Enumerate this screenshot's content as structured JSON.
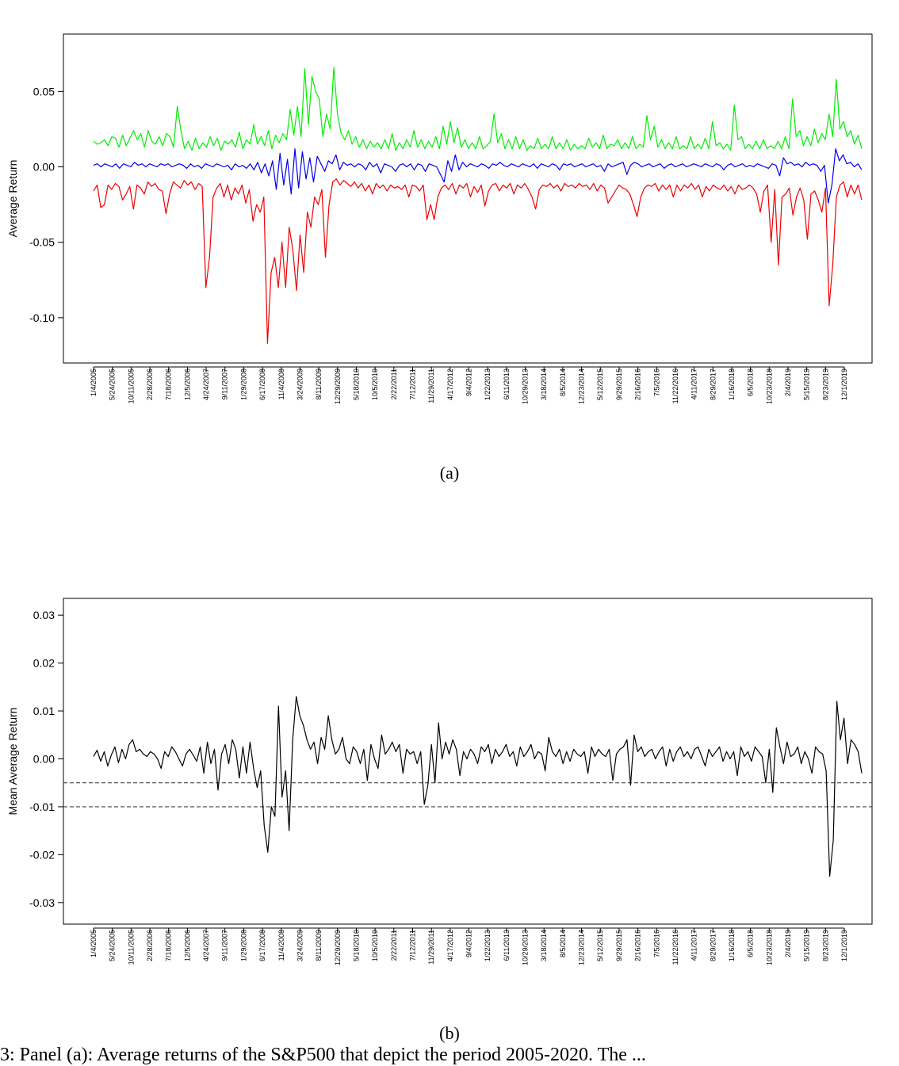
{
  "bottom_text": "3: Panel (a): Average returns of the S&P500 that depict the period 2005-2020. The ...",
  "chart_data": [
    {
      "type": "line",
      "panel": "a",
      "caption": "(a)",
      "title": "",
      "xlabel": "",
      "ylabel": "Average Return",
      "ylim": [
        -0.13,
        0.088
      ],
      "yticks": [
        -0.1,
        -0.05,
        0.0,
        0.05
      ],
      "ytick_labels": [
        "-0.10",
        "-0.05",
        "0.00",
        "0.05"
      ],
      "x_tick_labels": [
        "1/4/2005",
        "5/24/2005",
        "10/11/2005",
        "2/28/2006",
        "7/18/2006",
        "12/5/2006",
        "4/24/2007",
        "9/11/2007",
        "1/29/2008",
        "6/17/2008",
        "11/4/2008",
        "3/24/2009",
        "8/11/2009",
        "12/29/2009",
        "5/18/2010",
        "10/5/2010",
        "2/22/2011",
        "7/12/2011",
        "11/29/2011",
        "4/17/2012",
        "9/4/2012",
        "1/22/2013",
        "6/11/2013",
        "10/29/2013",
        "3/18/2014",
        "8/5/2014",
        "12/23/2014",
        "5/12/2015",
        "9/29/2015",
        "2/16/2016",
        "7/5/2016",
        "11/22/2016",
        "4/11/2017",
        "8/29/2017",
        "1/16/2018",
        "6/5/2018",
        "10/23/2018",
        "2/4/2019",
        "5/15/2019",
        "8/23/2019",
        "12/1/2019"
      ],
      "x_range_points": 41,
      "grid": false,
      "series": [
        {
          "color": "#00ee00",
          "values": [
            0.017,
            0.015,
            0.016,
            0.018,
            0.014,
            0.02,
            0.019,
            0.013,
            0.021,
            0.014,
            0.019,
            0.024,
            0.018,
            0.022,
            0.013,
            0.024,
            0.017,
            0.015,
            0.02,
            0.014,
            0.022,
            0.02,
            0.013,
            0.04,
            0.024,
            0.012,
            0.017,
            0.011,
            0.019,
            0.012,
            0.016,
            0.013,
            0.02,
            0.014,
            0.019,
            0.011,
            0.017,
            0.015,
            0.018,
            0.013,
            0.023,
            0.012,
            0.018,
            0.015,
            0.028,
            0.015,
            0.02,
            0.014,
            0.024,
            0.012,
            0.021,
            0.016,
            0.022,
            0.018,
            0.038,
            0.021,
            0.04,
            0.02,
            0.065,
            0.028,
            0.06,
            0.05,
            0.045,
            0.02,
            0.035,
            0.025,
            0.066,
            0.035,
            0.022,
            0.018,
            0.024,
            0.015,
            0.02,
            0.013,
            0.018,
            0.012,
            0.017,
            0.013,
            0.016,
            0.012,
            0.018,
            0.012,
            0.022,
            0.011,
            0.016,
            0.012,
            0.018,
            0.013,
            0.024,
            0.013,
            0.018,
            0.012,
            0.017,
            0.013,
            0.02,
            0.012,
            0.027,
            0.015,
            0.03,
            0.016,
            0.026,
            0.013,
            0.018,
            0.012,
            0.016,
            0.012,
            0.02,
            0.012,
            0.014,
            0.017,
            0.035,
            0.016,
            0.022,
            0.012,
            0.018,
            0.012,
            0.02,
            0.012,
            0.018,
            0.011,
            0.014,
            0.012,
            0.019,
            0.012,
            0.015,
            0.012,
            0.02,
            0.012,
            0.016,
            0.012,
            0.018,
            0.011,
            0.015,
            0.012,
            0.014,
            0.012,
            0.019,
            0.013,
            0.016,
            0.012,
            0.021,
            0.012,
            0.015,
            0.014,
            0.018,
            0.012,
            0.016,
            0.012,
            0.02,
            0.012,
            0.015,
            0.013,
            0.034,
            0.018,
            0.027,
            0.013,
            0.018,
            0.012,
            0.016,
            0.012,
            0.02,
            0.012,
            0.014,
            0.012,
            0.02,
            0.012,
            0.015,
            0.012,
            0.019,
            0.012,
            0.03,
            0.014,
            0.016,
            0.012,
            0.015,
            0.011,
            0.041,
            0.018,
            0.02,
            0.012,
            0.015,
            0.012,
            0.017,
            0.012,
            0.018,
            0.012,
            0.014,
            0.012,
            0.017,
            0.012,
            0.02,
            0.012,
            0.045,
            0.02,
            0.024,
            0.014,
            0.02,
            0.014,
            0.025,
            0.016,
            0.022,
            0.018,
            0.035,
            0.02,
            0.058,
            0.025,
            0.03,
            0.02,
            0.024,
            0.015,
            0.021,
            0.012
          ]
        },
        {
          "color": "#0000ee",
          "values": [
            0.001,
            0.002,
            0.0,
            0.002,
            0.001,
            0.0,
            0.002,
            -0.001,
            0.002,
            0.001,
            0.0,
            0.003,
            0.001,
            0.002,
            0.0,
            0.002,
            0.001,
            0.0,
            0.002,
            0.001,
            0.002,
            0.0,
            0.001,
            0.002,
            0.001,
            -0.001,
            0.002,
            0.0,
            0.001,
            -0.001,
            0.002,
            0.001,
            0.0,
            0.002,
            0.001,
            0.0,
            0.001,
            -0.002,
            0.002,
            0.0,
            0.001,
            -0.001,
            0.002,
            -0.002,
            0.003,
            -0.004,
            0.002,
            -0.006,
            0.004,
            -0.015,
            0.009,
            -0.012,
            0.005,
            -0.018,
            0.012,
            -0.014,
            0.01,
            -0.008,
            0.006,
            -0.01,
            0.007,
            0.002,
            -0.003,
            0.004,
            0.002,
            0.008,
            -0.002,
            0.003,
            0.001,
            0.002,
            0.0,
            0.002,
            0.001,
            -0.002,
            0.003,
            0.0,
            0.002,
            -0.004,
            0.002,
            0.001,
            0.0,
            -0.003,
            0.001,
            0.002,
            0.0,
            0.002,
            -0.002,
            0.002,
            0.001,
            -0.003,
            0.002,
            0.001,
            0.0,
            -0.005,
            -0.01,
            0.004,
            -0.003,
            0.008,
            -0.002,
            0.003,
            0.0,
            0.002,
            0.001,
            0.0,
            0.002,
            0.001,
            -0.001,
            0.002,
            0.001,
            0.003,
            0.001,
            0.0,
            0.002,
            0.001,
            0.0,
            0.002,
            0.001,
            0.0,
            0.002,
            -0.001,
            0.002,
            0.001,
            0.0,
            0.002,
            0.001,
            -0.002,
            0.002,
            0.001,
            0.002,
            0.0,
            0.001,
            0.002,
            0.0,
            0.001,
            0.002,
            0.0,
            0.001,
            -0.003,
            0.002,
            0.0,
            0.001,
            0.002,
            0.003,
            -0.005,
            0.001,
            0.003,
            0.002,
            0.0,
            0.001,
            0.002,
            0.0,
            0.001,
            0.002,
            -0.001,
            0.001,
            0.002,
            0.0,
            0.001,
            0.002,
            0.0,
            0.001,
            0.002,
            0.001,
            0.0,
            0.002,
            0.001,
            0.0,
            0.002,
            0.001,
            -0.002,
            0.001,
            0.002,
            0.0,
            0.001,
            0.002,
            0.0,
            0.001,
            0.0,
            0.002,
            0.001,
            0.0,
            -0.001,
            0.002,
            0.001,
            -0.006,
            0.006,
            0.002,
            0.003,
            0.001,
            0.002,
            0.0,
            0.003,
            0.001,
            0.002,
            0.001,
            -0.003,
            0.001,
            -0.024,
            -0.012,
            0.012,
            0.004,
            0.008,
            0.002,
            0.003,
            0.0,
            0.002,
            -0.002
          ]
        },
        {
          "color": "#ee0000",
          "values": [
            -0.016,
            -0.012,
            -0.027,
            -0.025,
            -0.012,
            -0.015,
            -0.011,
            -0.013,
            -0.022,
            -0.018,
            -0.013,
            -0.028,
            -0.012,
            -0.014,
            -0.018,
            -0.01,
            -0.013,
            -0.011,
            -0.015,
            -0.016,
            -0.031,
            -0.018,
            -0.01,
            -0.012,
            -0.014,
            -0.009,
            -0.012,
            -0.01,
            -0.015,
            -0.011,
            -0.013,
            -0.08,
            -0.06,
            -0.02,
            -0.014,
            -0.011,
            -0.02,
            -0.012,
            -0.022,
            -0.014,
            -0.018,
            -0.012,
            -0.024,
            -0.015,
            -0.036,
            -0.025,
            -0.03,
            -0.02,
            -0.117,
            -0.07,
            -0.06,
            -0.08,
            -0.05,
            -0.08,
            -0.04,
            -0.055,
            -0.082,
            -0.045,
            -0.07,
            -0.03,
            -0.04,
            -0.02,
            -0.025,
            -0.015,
            -0.06,
            -0.025,
            -0.01,
            -0.008,
            -0.012,
            -0.009,
            -0.011,
            -0.013,
            -0.01,
            -0.014,
            -0.011,
            -0.016,
            -0.012,
            -0.018,
            -0.011,
            -0.014,
            -0.012,
            -0.016,
            -0.012,
            -0.014,
            -0.013,
            -0.015,
            -0.012,
            -0.02,
            -0.012,
            -0.013,
            -0.016,
            -0.012,
            -0.035,
            -0.025,
            -0.035,
            -0.02,
            -0.014,
            -0.012,
            -0.015,
            -0.011,
            -0.018,
            -0.012,
            -0.014,
            -0.011,
            -0.02,
            -0.013,
            -0.017,
            -0.012,
            -0.026,
            -0.016,
            -0.012,
            -0.011,
            -0.016,
            -0.012,
            -0.014,
            -0.011,
            -0.018,
            -0.012,
            -0.014,
            -0.011,
            -0.015,
            -0.02,
            -0.028,
            -0.015,
            -0.012,
            -0.013,
            -0.011,
            -0.014,
            -0.012,
            -0.016,
            -0.011,
            -0.013,
            -0.012,
            -0.014,
            -0.011,
            -0.013,
            -0.012,
            -0.015,
            -0.011,
            -0.016,
            -0.012,
            -0.014,
            -0.024,
            -0.02,
            -0.016,
            -0.012,
            -0.014,
            -0.015,
            -0.018,
            -0.025,
            -0.033,
            -0.02,
            -0.014,
            -0.012,
            -0.013,
            -0.011,
            -0.016,
            -0.012,
            -0.015,
            -0.012,
            -0.02,
            -0.012,
            -0.016,
            -0.012,
            -0.014,
            -0.011,
            -0.015,
            -0.012,
            -0.02,
            -0.013,
            -0.016,
            -0.012,
            -0.014,
            -0.015,
            -0.012,
            -0.016,
            -0.013,
            -0.018,
            -0.012,
            -0.015,
            -0.014,
            -0.012,
            -0.014,
            -0.018,
            -0.03,
            -0.016,
            -0.012,
            -0.05,
            -0.015,
            -0.065,
            -0.02,
            -0.018,
            -0.014,
            -0.032,
            -0.02,
            -0.014,
            -0.022,
            -0.048,
            -0.018,
            -0.016,
            -0.022,
            -0.03,
            -0.014,
            -0.092,
            -0.065,
            -0.02,
            -0.012,
            -0.01,
            -0.02,
            -0.012,
            -0.018,
            -0.012,
            -0.022
          ]
        }
      ]
    },
    {
      "type": "line",
      "panel": "b",
      "caption": "(b)",
      "title": "",
      "xlabel": "",
      "ylabel": "Mean Average Return",
      "ylim": [
        -0.0345,
        0.0335
      ],
      "yticks": [
        -0.03,
        -0.02,
        -0.01,
        0.0,
        0.01,
        0.02,
        0.03
      ],
      "ytick_labels": [
        "-0.03",
        "-0.02",
        "-0.01",
        "0.00",
        "0.01",
        "0.02",
        "0.03"
      ],
      "x_tick_labels": [
        "1/4/2005",
        "5/24/2005",
        "10/11/2005",
        "2/28/2006",
        "7/18/2006",
        "12/5/2006",
        "4/24/2007",
        "9/11/2007",
        "1/29/2008",
        "6/17/2008",
        "11/4/2008",
        "3/24/2009",
        "8/11/2009",
        "12/29/2009",
        "5/18/2010",
        "10/5/2010",
        "2/22/2011",
        "7/12/2011",
        "11/29/2011",
        "4/17/2012",
        "9/4/2012",
        "1/22/2013",
        "6/11/2013",
        "10/29/2013",
        "3/18/2014",
        "8/5/2014",
        "12/23/2014",
        "5/12/2015",
        "9/29/2015",
        "2/16/2016",
        "7/5/2016",
        "11/22/2016",
        "4/11/2017",
        "8/29/2017",
        "1/16/2018",
        "6/5/2018",
        "10/23/2018",
        "2/4/2019",
        "5/15/2019",
        "8/23/2019",
        "12/1/2019"
      ],
      "grid": false,
      "reference_lines": [
        {
          "y": -0.005,
          "style": "dashed",
          "color": "#444444"
        },
        {
          "y": -0.01,
          "style": "dashed",
          "color": "#444444"
        }
      ],
      "series": [
        {
          "color": "#000000",
          "values": [
            0.0005,
            0.0018,
            -0.0005,
            0.0015,
            -0.0015,
            0.0008,
            0.0025,
            -0.0008,
            0.002,
            0.0,
            0.003,
            0.004,
            0.0015,
            0.002,
            0.001,
            0.0005,
            0.0015,
            0.001,
            0.0,
            -0.002,
            0.0015,
            0.0005,
            0.0025,
            0.0015,
            0.0,
            -0.0015,
            0.001,
            0.002,
            0.0008,
            -0.0005,
            0.0025,
            -0.003,
            0.0035,
            -0.001,
            0.002,
            -0.0065,
            0.001,
            0.003,
            -0.001,
            0.004,
            0.002,
            -0.004,
            0.0025,
            -0.003,
            0.0035,
            -0.002,
            -0.006,
            -0.0025,
            -0.014,
            -0.0195,
            -0.01,
            -0.012,
            0.011,
            -0.008,
            -0.0025,
            -0.015,
            0.004,
            0.013,
            0.009,
            0.007,
            0.004,
            0.002,
            0.0035,
            -0.001,
            0.0045,
            0.002,
            0.009,
            0.004,
            0.001,
            0.002,
            0.0045,
            0.0,
            -0.001,
            0.0025,
            0.0015,
            -0.001,
            0.002,
            -0.0045,
            0.003,
            0.0,
            -0.002,
            0.005,
            0.001,
            0.002,
            0.0035,
            0.0015,
            0.003,
            -0.003,
            0.002,
            0.001,
            0.0015,
            -0.001,
            0.0015,
            -0.0095,
            -0.0055,
            0.003,
            -0.005,
            0.0075,
            0.0,
            0.0035,
            0.001,
            0.004,
            0.002,
            -0.0035,
            0.0015,
            0.0,
            0.002,
            0.001,
            -0.001,
            0.0025,
            0.0015,
            0.003,
            -0.001,
            0.002,
            0.0005,
            0.0015,
            0.003,
            0.0005,
            0.0015,
            -0.0015,
            0.0025,
            0.0005,
            0.0015,
            0.003,
            0.0,
            0.0015,
            0.001,
            -0.0025,
            0.0045,
            0.0015,
            0.0005,
            0.002,
            -0.001,
            0.0015,
            -0.0005,
            0.002,
            0.001,
            0.0005,
            0.0015,
            -0.003,
            0.0025,
            0.0005,
            0.002,
            0.001,
            0.0005,
            0.002,
            -0.0045,
            0.001,
            0.002,
            0.0025,
            0.004,
            -0.0055,
            0.005,
            0.0015,
            0.0025,
            0.0005,
            0.0015,
            0.002,
            0.0,
            0.0015,
            0.0025,
            -0.0015,
            0.002,
            -0.0005,
            0.0015,
            0.0025,
            0.0005,
            0.0015,
            0.0,
            0.002,
            0.0025,
            0.0005,
            -0.0015,
            0.002,
            0.0005,
            0.0015,
            0.0025,
            -0.0005,
            0.0015,
            0.0,
            0.0015,
            -0.0035,
            0.0025,
            0.0005,
            0.0015,
            -0.0005,
            0.0025,
            0.0015,
            0.0005,
            -0.005,
            0.002,
            -0.007,
            0.0065,
            0.0025,
            -0.001,
            0.0035,
            0.0005,
            0.001,
            0.0025,
            -0.001,
            0.0015,
            0.0,
            -0.003,
            0.0025,
            0.0015,
            0.001,
            -0.0025,
            -0.0245,
            -0.017,
            0.012,
            0.004,
            0.0085,
            -0.001,
            0.004,
            0.003,
            0.0015,
            -0.003
          ]
        }
      ]
    }
  ]
}
